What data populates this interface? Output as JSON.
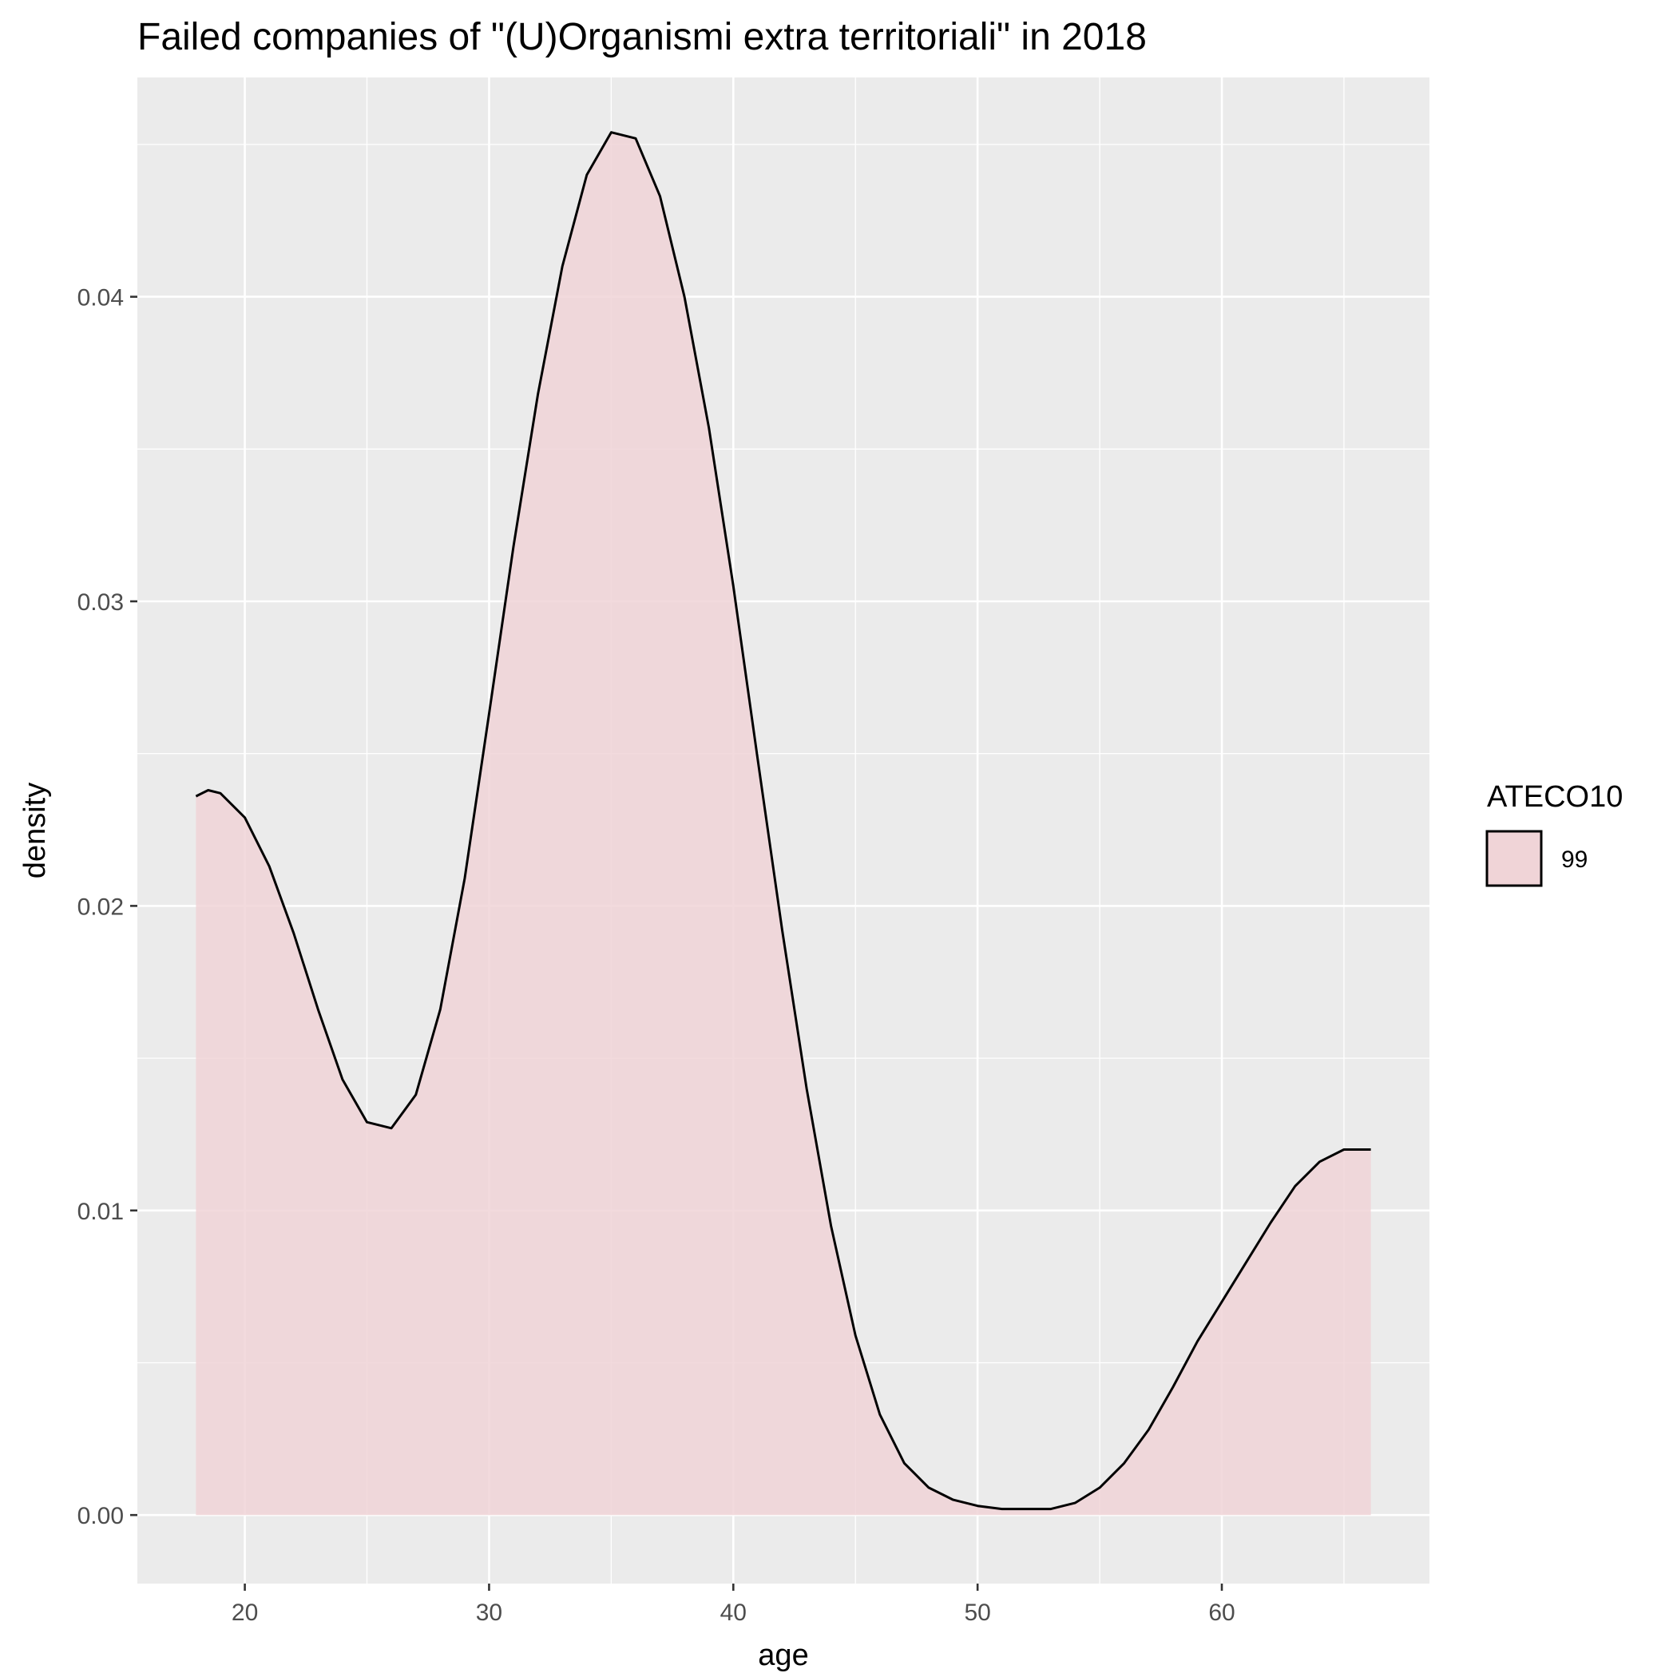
{
  "chart_data": {
    "type": "area",
    "title": "Failed companies of \"(U)Organismi extra territoriali\" in 2018",
    "xlabel": "age",
    "ylabel": "density",
    "xlim": [
      15.6,
      68.5
    ],
    "ylim": [
      -0.00225,
      0.0472
    ],
    "x_ticks": [
      20,
      30,
      40,
      50,
      60
    ],
    "x_tick_labels": [
      "20",
      "30",
      "40",
      "50",
      "60"
    ],
    "y_ticks": [
      0,
      0.01,
      0.02,
      0.03,
      0.04
    ],
    "y_tick_labels": [
      "0.00",
      "0.01",
      "0.02",
      "0.03",
      "0.04"
    ],
    "grid": true,
    "legend": {
      "title": "ATECO10",
      "position": "right",
      "entries": [
        {
          "label": "99",
          "fill": "#F0D4D7",
          "stroke": "#000000"
        }
      ]
    },
    "series": [
      {
        "name": "99",
        "fill": "#F0D4D7",
        "stroke": "#000000",
        "x": [
          18,
          18.5,
          19,
          20,
          21,
          22,
          23,
          24,
          25,
          26,
          27,
          28,
          29,
          30,
          31,
          32,
          33,
          34,
          35,
          36,
          37,
          38,
          39,
          40,
          41,
          42,
          43,
          44,
          45,
          46,
          47,
          48,
          49,
          50,
          51,
          52,
          53,
          54,
          55,
          56,
          57,
          58,
          59,
          60,
          61,
          62,
          63,
          64,
          65,
          66.1
        ],
        "y": [
          0.0236,
          0.0238,
          0.0237,
          0.0229,
          0.0213,
          0.0191,
          0.0166,
          0.0143,
          0.0129,
          0.0127,
          0.0138,
          0.0166,
          0.0209,
          0.0263,
          0.0318,
          0.0368,
          0.041,
          0.044,
          0.0454,
          0.0452,
          0.0433,
          0.04,
          0.0357,
          0.0305,
          0.0248,
          0.0192,
          0.014,
          0.0095,
          0.0059,
          0.0033,
          0.0017,
          0.0009,
          0.0005,
          0.0003,
          0.0002,
          0.0002,
          0.0002,
          0.0004,
          0.0009,
          0.0017,
          0.0028,
          0.0042,
          0.0057,
          0.007,
          0.0083,
          0.0096,
          0.0108,
          0.0116,
          0.012,
          0.012
        ]
      }
    ]
  }
}
